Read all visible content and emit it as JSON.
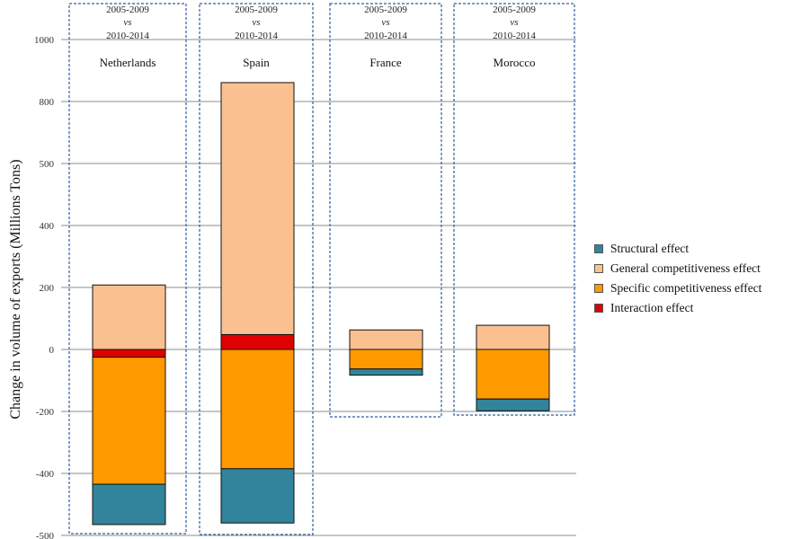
{
  "chart_data": {
    "type": "bar",
    "stacked": true,
    "ylabel": "Change in volume of exports (Millions Tons)",
    "y_ticks": [
      "-500",
      "-400",
      "-200",
      "0",
      "200",
      "400",
      "500",
      "800",
      "1000"
    ],
    "grid": true,
    "legend_position": "right",
    "panels": [
      {
        "country": "Netherlands",
        "period_a": "2005-2009",
        "vs": "vs",
        "period_b": "2010-2014"
      },
      {
        "country": "Spain",
        "period_a": "2005-2009",
        "vs": "vs",
        "period_b": "2010-2014"
      },
      {
        "country": "France",
        "period_a": "2005-2009",
        "vs": "vs",
        "period_b": "2010-2014"
      },
      {
        "country": "Morocco",
        "period_a": "2005-2009",
        "vs": "vs",
        "period_b": "2010-2014"
      }
    ],
    "categories": [
      "Netherlands",
      "Spain",
      "France",
      "Morocco"
    ],
    "series": [
      {
        "name": "Structural effect",
        "color": "#31849b",
        "values": [
          -130,
          -175,
          -20,
          -38
        ]
      },
      {
        "name": "General competitiveness effect",
        "color": "#fac090",
        "values": [
          208,
          813,
          63,
          78
        ]
      },
      {
        "name": "Specific competitiveness effect",
        "color": "#ff9900",
        "values": [
          -410,
          -385,
          -63,
          -160
        ]
      },
      {
        "name": "Interaction effect",
        "color": "#e00000",
        "values": [
          -25,
          48,
          0,
          0
        ]
      }
    ]
  }
}
